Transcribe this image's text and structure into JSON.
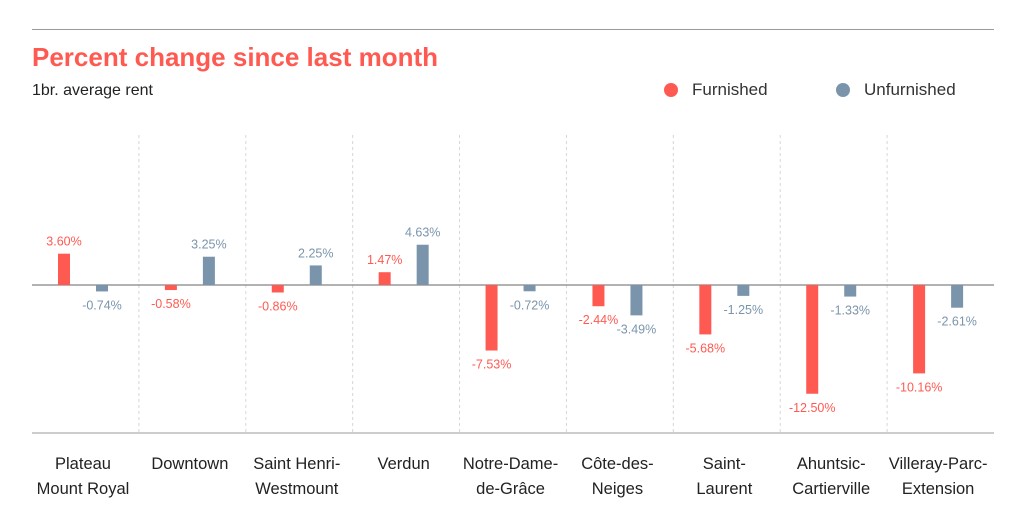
{
  "chart_data": {
    "type": "bar",
    "title": "Percent change since last month",
    "subtitle": "1br. average rent",
    "categories": [
      [
        "Plateau",
        "Mount Royal"
      ],
      [
        "Downtown"
      ],
      [
        "Saint Henri-",
        "Westmount"
      ],
      [
        "Verdun"
      ],
      [
        "Notre-Dame-",
        "de-Grâce"
      ],
      [
        "Côte-des-",
        "Neiges"
      ],
      [
        "Saint-",
        "Laurent"
      ],
      [
        "Ahuntsic-",
        "Cartierville"
      ],
      [
        "Villeray-Parc-",
        "Extension"
      ]
    ],
    "series": [
      {
        "name": "Furnished",
        "color": "#ff5a52",
        "values": [
          3.6,
          -0.58,
          -0.86,
          1.47,
          -7.53,
          -2.44,
          -5.68,
          -12.5,
          -10.16
        ],
        "labels": [
          "3.60%",
          "-0.58%",
          "-0.86%",
          "1.47%",
          "-7.53%",
          "-2.44%",
          "-5.68%",
          "-12.50%",
          "-10.16%"
        ]
      },
      {
        "name": "Unfurnished",
        "color": "#7a95ab",
        "values": [
          -0.74,
          3.25,
          2.25,
          4.63,
          -0.72,
          -3.49,
          -1.25,
          -1.33,
          -2.61
        ],
        "labels": [
          "-0.74%",
          "3.25%",
          "2.25%",
          "4.63%",
          "-0.72%",
          "-3.49%",
          "-1.25%",
          "-1.33%",
          "-2.61%"
        ]
      }
    ],
    "ylim": [
      -17,
      6
    ],
    "grid": "vertical-dashed",
    "legend_position": "top-right"
  }
}
